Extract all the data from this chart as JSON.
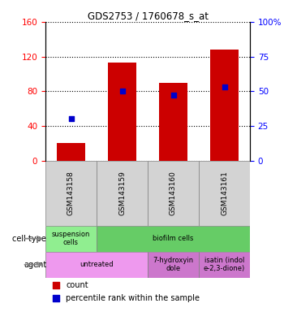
{
  "title": "GDS2753 / 1760678_s_at",
  "samples": [
    "GSM143158",
    "GSM143159",
    "GSM143160",
    "GSM143161"
  ],
  "bar_values": [
    20,
    113,
    90,
    128
  ],
  "percentile_values": [
    30,
    50,
    47,
    53
  ],
  "bar_color": "#cc0000",
  "dot_color": "#0000cc",
  "ylim_left": [
    0,
    160
  ],
  "ylim_right": [
    0,
    100
  ],
  "yticks_left": [
    0,
    40,
    80,
    120,
    160
  ],
  "yticks_right": [
    0,
    25,
    50,
    75,
    100
  ],
  "ytick_labels_right": [
    "0",
    "25",
    "50",
    "75",
    "100%"
  ],
  "gsm_box_color": "#d3d3d3",
  "cell_type_colors": [
    "#90ee90",
    "#66cc66"
  ],
  "cell_type_texts": [
    "suspension\ncells",
    "biofilm cells"
  ],
  "cell_type_spans": [
    1,
    3
  ],
  "agent_colors": [
    "#ee99ee",
    "#cc77cc",
    "#cc77cc"
  ],
  "agent_texts": [
    "untreated",
    "7-hydroxyin\ndole",
    "isatin (indol\ne-2,3-dione)"
  ],
  "agent_spans": [
    2,
    1,
    1
  ],
  "legend_items": [
    {
      "color": "#cc0000",
      "label": "count"
    },
    {
      "color": "#0000cc",
      "label": "percentile rank within the sample"
    }
  ],
  "background_color": "#ffffff",
  "bar_width": 0.55
}
